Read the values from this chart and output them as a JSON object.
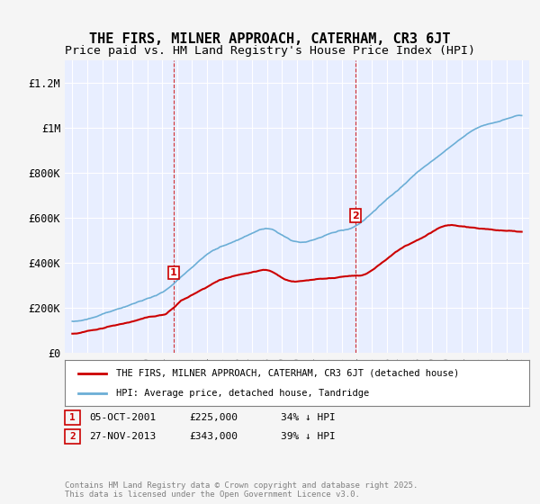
{
  "title": "THE FIRS, MILNER APPROACH, CATERHAM, CR3 6JT",
  "subtitle": "Price paid vs. HM Land Registry's House Price Index (HPI)",
  "xlabel": "",
  "ylabel": "",
  "ylim": [
    0,
    1300000
  ],
  "yticks": [
    0,
    200000,
    400000,
    600000,
    800000,
    1000000,
    1200000
  ],
  "ytick_labels": [
    "£0",
    "£200K",
    "£400K",
    "£600K",
    "£800K",
    "£1M",
    "£1.2M"
  ],
  "hpi_color": "#6baed6",
  "price_color": "#cc0000",
  "vline_color": "#cc0000",
  "vline_style": "--",
  "marker1_x": 2001.75,
  "marker1_label": "1",
  "marker1_date": "05-OCT-2001",
  "marker1_price": "£225,000",
  "marker1_hpi": "34% ↓ HPI",
  "marker2_x": 2013.9,
  "marker2_label": "2",
  "marker2_date": "27-NOV-2013",
  "marker2_price": "£343,000",
  "marker2_hpi": "39% ↓ HPI",
  "legend_line1": "THE FIRS, MILNER APPROACH, CATERHAM, CR3 6JT (detached house)",
  "legend_line2": "HPI: Average price, detached house, Tandridge",
  "footer": "Contains HM Land Registry data © Crown copyright and database right 2025.\nThis data is licensed under the Open Government Licence v3.0.",
  "background_color": "#f0f4ff",
  "plot_bg_color": "#e8eeff",
  "grid_color": "#ffffff",
  "title_fontsize": 11,
  "subtitle_fontsize": 9.5,
  "tick_fontsize": 8.5
}
